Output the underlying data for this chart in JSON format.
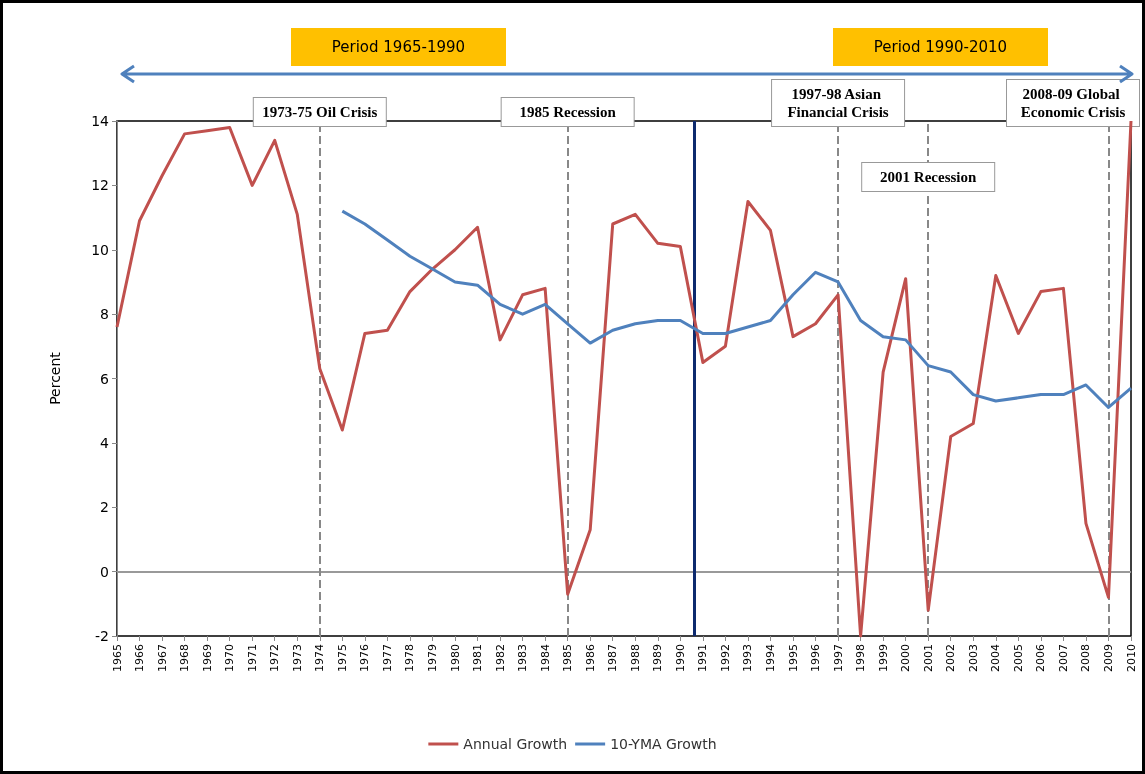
{
  "chart_data": {
    "type": "line",
    "ylabel": "Percent",
    "x": [
      1965,
      1966,
      1967,
      1968,
      1969,
      1970,
      1971,
      1972,
      1973,
      1974,
      1975,
      1976,
      1977,
      1978,
      1979,
      1980,
      1981,
      1982,
      1983,
      1984,
      1985,
      1986,
      1987,
      1988,
      1989,
      1990,
      1991,
      1992,
      1993,
      1994,
      1995,
      1996,
      1997,
      1998,
      1999,
      2000,
      2001,
      2002,
      2003,
      2004,
      2005,
      2006,
      2007,
      2008,
      2009,
      2010
    ],
    "series": [
      {
        "name": "Annual Growth",
        "color": "#c0504d",
        "values": [
          7.6,
          10.9,
          12.3,
          13.6,
          13.7,
          13.8,
          12.0,
          13.4,
          11.1,
          6.3,
          4.4,
          7.4,
          7.5,
          8.7,
          9.4,
          10.0,
          10.7,
          7.2,
          8.6,
          8.8,
          -0.7,
          1.3,
          10.8,
          11.1,
          10.2,
          10.1,
          6.5,
          7.0,
          11.5,
          10.6,
          7.3,
          7.7,
          8.6,
          -2.0,
          6.2,
          9.1,
          -1.2,
          4.2,
          4.6,
          9.2,
          7.4,
          8.7,
          8.8,
          1.5,
          -0.8,
          14.0
        ]
      },
      {
        "name": "10-YMA Growth",
        "color": "#4f81bd",
        "values": [
          null,
          null,
          null,
          null,
          null,
          null,
          null,
          null,
          null,
          null,
          11.2,
          10.8,
          10.3,
          9.8,
          9.4,
          9.0,
          8.9,
          8.3,
          8.0,
          8.3,
          7.7,
          7.1,
          7.5,
          7.7,
          7.8,
          7.8,
          7.4,
          7.4,
          7.6,
          7.8,
          8.6,
          9.3,
          9.0,
          7.8,
          7.3,
          7.2,
          6.4,
          6.2,
          5.5,
          5.3,
          5.4,
          5.5,
          5.5,
          5.8,
          5.1,
          5.7
        ]
      }
    ],
    "xlim": [
      1965,
      2010
    ],
    "xticks": [
      1965,
      1966,
      1967,
      1968,
      1969,
      1970,
      1971,
      1972,
      1973,
      1974,
      1975,
      1976,
      1977,
      1978,
      1979,
      1980,
      1981,
      1982,
      1983,
      1984,
      1985,
      1986,
      1987,
      1988,
      1989,
      1990,
      1991,
      1992,
      1993,
      1994,
      1995,
      1996,
      1997,
      1998,
      1999,
      2000,
      2001,
      2002,
      2003,
      2004,
      2005,
      2006,
      2007,
      2008,
      2009,
      2010
    ],
    "ylim": [
      -2,
      14
    ],
    "yticks": [
      -2,
      0,
      2,
      4,
      6,
      8,
      10,
      12,
      14
    ],
    "ref_lines": [
      {
        "axis": "y",
        "value": 0,
        "color": "#999999",
        "line_style": "solid"
      },
      {
        "axis": "x",
        "value": 1974,
        "label": "1973-75 Oil Crisis",
        "color": "#888888",
        "line_style": "dashed"
      },
      {
        "axis": "x",
        "value": 1985,
        "label": "1985 Recession",
        "color": "#888888",
        "line_style": "dashed"
      },
      {
        "axis": "x",
        "value": 1990.6,
        "color": "#0d2a6e",
        "line_style": "solid"
      },
      {
        "axis": "x",
        "value": 1997,
        "label": "1997-98 Asian Financial Crisis",
        "color": "#888888",
        "line_style": "dashed"
      },
      {
        "axis": "x",
        "value": 2001,
        "label": "2001 Recession",
        "color": "#888888",
        "line_style": "dashed"
      },
      {
        "axis": "x",
        "value": 2009,
        "label": "2008-09 Global Economic Crisis",
        "color": "#888888",
        "line_style": "dashed"
      }
    ],
    "annotations": [
      "Period 1965-1990",
      "Period 1990-2010"
    ],
    "legend": "bottom",
    "grid": false,
    "marker": "none",
    "line_style": "solid"
  }
}
